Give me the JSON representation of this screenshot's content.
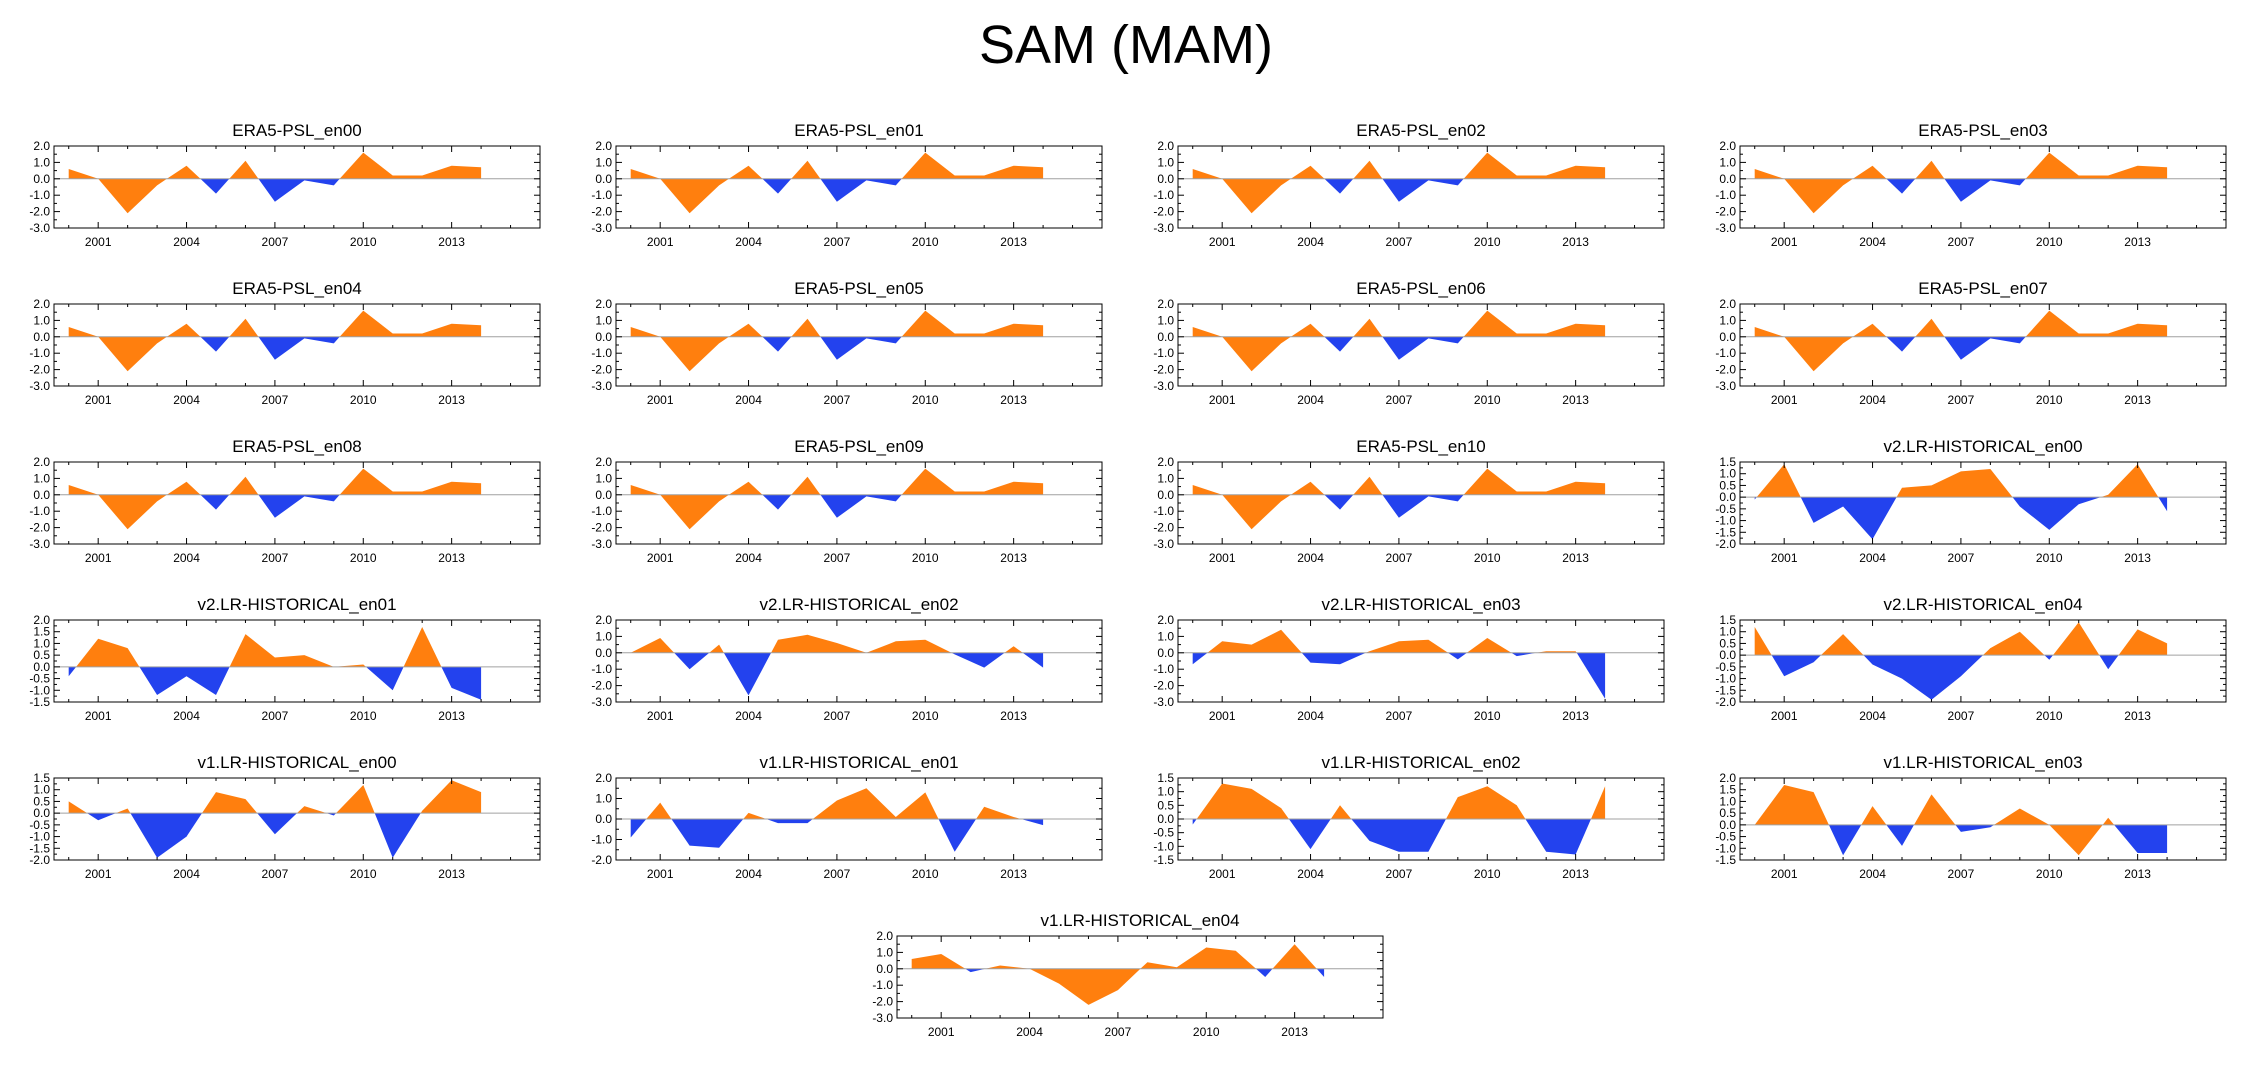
{
  "title": "SAM (MAM)",
  "colors": {
    "positive": "#ff7f0e",
    "negative": "#2342ee",
    "zero_line": "#a0a0a0"
  },
  "chart_data": [
    {
      "type": "area",
      "title": "ERA5-PSL_en00",
      "x": [
        2000,
        2001,
        2002,
        2003,
        2004,
        2005,
        2006,
        2007,
        2008,
        2009,
        2010,
        2011,
        2012,
        2013,
        2014
      ],
      "values": [
        0.6,
        0.0,
        -2.1,
        -0.4,
        0.8,
        -0.9,
        1.1,
        -1.4,
        -0.1,
        -0.4,
        1.6,
        0.2,
        0.2,
        0.8,
        0.7
      ],
      "yticks": [
        2.0,
        1.0,
        0.0,
        -1.0,
        -2.0,
        -3.0
      ],
      "ylim": [
        -3.0,
        2.0
      ],
      "xticks": [
        2001,
        2004,
        2007,
        2010,
        2013
      ],
      "xlim": [
        1999.5,
        2016
      ]
    },
    {
      "type": "area",
      "title": "ERA5-PSL_en01",
      "x": [
        2000,
        2001,
        2002,
        2003,
        2004,
        2005,
        2006,
        2007,
        2008,
        2009,
        2010,
        2011,
        2012,
        2013,
        2014
      ],
      "values": [
        0.6,
        0.0,
        -2.1,
        -0.4,
        0.8,
        -0.9,
        1.1,
        -1.4,
        -0.1,
        -0.4,
        1.6,
        0.2,
        0.2,
        0.8,
        0.7
      ],
      "yticks": [
        2.0,
        1.0,
        0.0,
        -1.0,
        -2.0,
        -3.0
      ],
      "ylim": [
        -3.0,
        2.0
      ],
      "xticks": [
        2001,
        2004,
        2007,
        2010,
        2013
      ],
      "xlim": [
        1999.5,
        2016
      ]
    },
    {
      "type": "area",
      "title": "ERA5-PSL_en02",
      "x": [
        2000,
        2001,
        2002,
        2003,
        2004,
        2005,
        2006,
        2007,
        2008,
        2009,
        2010,
        2011,
        2012,
        2013,
        2014
      ],
      "values": [
        0.6,
        0.0,
        -2.1,
        -0.4,
        0.8,
        -0.9,
        1.1,
        -1.4,
        -0.1,
        -0.4,
        1.6,
        0.2,
        0.2,
        0.8,
        0.7
      ],
      "yticks": [
        2.0,
        1.0,
        0.0,
        -1.0,
        -2.0,
        -3.0
      ],
      "ylim": [
        -3.0,
        2.0
      ],
      "xticks": [
        2001,
        2004,
        2007,
        2010,
        2013
      ],
      "xlim": [
        1999.5,
        2016
      ]
    },
    {
      "type": "area",
      "title": "ERA5-PSL_en03",
      "x": [
        2000,
        2001,
        2002,
        2003,
        2004,
        2005,
        2006,
        2007,
        2008,
        2009,
        2010,
        2011,
        2012,
        2013,
        2014
      ],
      "values": [
        0.6,
        0.0,
        -2.1,
        -0.4,
        0.8,
        -0.9,
        1.1,
        -1.4,
        -0.1,
        -0.4,
        1.6,
        0.2,
        0.2,
        0.8,
        0.7
      ],
      "yticks": [
        2.0,
        1.0,
        0.0,
        -1.0,
        -2.0,
        -3.0
      ],
      "ylim": [
        -3.0,
        2.0
      ],
      "xticks": [
        2001,
        2004,
        2007,
        2010,
        2013
      ],
      "xlim": [
        1999.5,
        2016
      ]
    },
    {
      "type": "area",
      "title": "ERA5-PSL_en04",
      "x": [
        2000,
        2001,
        2002,
        2003,
        2004,
        2005,
        2006,
        2007,
        2008,
        2009,
        2010,
        2011,
        2012,
        2013,
        2014
      ],
      "values": [
        0.6,
        0.0,
        -2.1,
        -0.4,
        0.8,
        -0.9,
        1.1,
        -1.4,
        -0.1,
        -0.4,
        1.6,
        0.2,
        0.2,
        0.8,
        0.7
      ],
      "yticks": [
        2.0,
        1.0,
        0.0,
        -1.0,
        -2.0,
        -3.0
      ],
      "ylim": [
        -3.0,
        2.0
      ],
      "xticks": [
        2001,
        2004,
        2007,
        2010,
        2013
      ],
      "xlim": [
        1999.5,
        2016
      ]
    },
    {
      "type": "area",
      "title": "ERA5-PSL_en05",
      "x": [
        2000,
        2001,
        2002,
        2003,
        2004,
        2005,
        2006,
        2007,
        2008,
        2009,
        2010,
        2011,
        2012,
        2013,
        2014
      ],
      "values": [
        0.6,
        0.0,
        -2.1,
        -0.4,
        0.8,
        -0.9,
        1.1,
        -1.4,
        -0.1,
        -0.4,
        1.6,
        0.2,
        0.2,
        0.8,
        0.7
      ],
      "yticks": [
        2.0,
        1.0,
        0.0,
        -1.0,
        -2.0,
        -3.0
      ],
      "ylim": [
        -3.0,
        2.0
      ],
      "xticks": [
        2001,
        2004,
        2007,
        2010,
        2013
      ],
      "xlim": [
        1999.5,
        2016
      ]
    },
    {
      "type": "area",
      "title": "ERA5-PSL_en06",
      "x": [
        2000,
        2001,
        2002,
        2003,
        2004,
        2005,
        2006,
        2007,
        2008,
        2009,
        2010,
        2011,
        2012,
        2013,
        2014
      ],
      "values": [
        0.6,
        0.0,
        -2.1,
        -0.4,
        0.8,
        -0.9,
        1.1,
        -1.4,
        -0.1,
        -0.4,
        1.6,
        0.2,
        0.2,
        0.8,
        0.7
      ],
      "yticks": [
        2.0,
        1.0,
        0.0,
        -1.0,
        -2.0,
        -3.0
      ],
      "ylim": [
        -3.0,
        2.0
      ],
      "xticks": [
        2001,
        2004,
        2007,
        2010,
        2013
      ],
      "xlim": [
        1999.5,
        2016
      ]
    },
    {
      "type": "area",
      "title": "ERA5-PSL_en07",
      "x": [
        2000,
        2001,
        2002,
        2003,
        2004,
        2005,
        2006,
        2007,
        2008,
        2009,
        2010,
        2011,
        2012,
        2013,
        2014
      ],
      "values": [
        0.6,
        0.0,
        -2.1,
        -0.4,
        0.8,
        -0.9,
        1.1,
        -1.4,
        -0.1,
        -0.4,
        1.6,
        0.2,
        0.2,
        0.8,
        0.7
      ],
      "yticks": [
        2.0,
        1.0,
        0.0,
        -1.0,
        -2.0,
        -3.0
      ],
      "ylim": [
        -3.0,
        2.0
      ],
      "xticks": [
        2001,
        2004,
        2007,
        2010,
        2013
      ],
      "xlim": [
        1999.5,
        2016
      ]
    },
    {
      "type": "area",
      "title": "ERA5-PSL_en08",
      "x": [
        2000,
        2001,
        2002,
        2003,
        2004,
        2005,
        2006,
        2007,
        2008,
        2009,
        2010,
        2011,
        2012,
        2013,
        2014
      ],
      "values": [
        0.6,
        0.0,
        -2.1,
        -0.4,
        0.8,
        -0.9,
        1.1,
        -1.4,
        -0.1,
        -0.4,
        1.6,
        0.2,
        0.2,
        0.8,
        0.7
      ],
      "yticks": [
        2.0,
        1.0,
        0.0,
        -1.0,
        -2.0,
        -3.0
      ],
      "ylim": [
        -3.0,
        2.0
      ],
      "xticks": [
        2001,
        2004,
        2007,
        2010,
        2013
      ],
      "xlim": [
        1999.5,
        2016
      ]
    },
    {
      "type": "area",
      "title": "ERA5-PSL_en09",
      "x": [
        2000,
        2001,
        2002,
        2003,
        2004,
        2005,
        2006,
        2007,
        2008,
        2009,
        2010,
        2011,
        2012,
        2013,
        2014
      ],
      "values": [
        0.6,
        0.0,
        -2.1,
        -0.4,
        0.8,
        -0.9,
        1.1,
        -1.4,
        -0.1,
        -0.4,
        1.6,
        0.2,
        0.2,
        0.8,
        0.7
      ],
      "yticks": [
        2.0,
        1.0,
        0.0,
        -1.0,
        -2.0,
        -3.0
      ],
      "ylim": [
        -3.0,
        2.0
      ],
      "xticks": [
        2001,
        2004,
        2007,
        2010,
        2013
      ],
      "xlim": [
        1999.5,
        2016
      ]
    },
    {
      "type": "area",
      "title": "ERA5-PSL_en10",
      "x": [
        2000,
        2001,
        2002,
        2003,
        2004,
        2005,
        2006,
        2007,
        2008,
        2009,
        2010,
        2011,
        2012,
        2013,
        2014
      ],
      "values": [
        0.6,
        0.0,
        -2.1,
        -0.4,
        0.8,
        -0.9,
        1.1,
        -1.4,
        -0.1,
        -0.4,
        1.6,
        0.2,
        0.2,
        0.8,
        0.7
      ],
      "yticks": [
        2.0,
        1.0,
        0.0,
        -1.0,
        -2.0,
        -3.0
      ],
      "ylim": [
        -3.0,
        2.0
      ],
      "xticks": [
        2001,
        2004,
        2007,
        2010,
        2013
      ],
      "xlim": [
        1999.5,
        2016
      ]
    },
    {
      "type": "area",
      "title": "v2.LR-HISTORICAL_en00",
      "x": [
        2000,
        2001,
        2002,
        2003,
        2004,
        2005,
        2006,
        2007,
        2008,
        2009,
        2010,
        2011,
        2012,
        2013,
        2014
      ],
      "values": [
        -0.1,
        1.4,
        -1.1,
        -0.4,
        -1.8,
        0.4,
        0.5,
        1.1,
        1.2,
        -0.4,
        -1.4,
        -0.3,
        0.1,
        1.4,
        -0.6
      ],
      "yticks": [
        1.5,
        1.0,
        0.5,
        0.0,
        -0.5,
        -1.0,
        -1.5,
        -2.0
      ],
      "ylim": [
        -2.0,
        1.5
      ],
      "xticks": [
        2001,
        2004,
        2007,
        2010,
        2013
      ],
      "xlim": [
        1999.5,
        2016
      ]
    },
    {
      "type": "area",
      "title": "v2.LR-HISTORICAL_en01",
      "x": [
        2000,
        2001,
        2002,
        2003,
        2004,
        2005,
        2006,
        2007,
        2008,
        2009,
        2010,
        2011,
        2012,
        2013,
        2014
      ],
      "values": [
        -0.4,
        1.2,
        0.8,
        -1.2,
        -0.4,
        -1.2,
        1.4,
        0.4,
        0.5,
        0.0,
        0.1,
        -1.0,
        1.7,
        -0.9,
        -1.4
      ],
      "yticks": [
        2.0,
        1.5,
        1.0,
        0.5,
        0.0,
        -0.5,
        -1.0,
        -1.5
      ],
      "ylim": [
        -1.5,
        2.0
      ],
      "xticks": [
        2001,
        2004,
        2007,
        2010,
        2013
      ],
      "xlim": [
        1999.5,
        2016
      ]
    },
    {
      "type": "area",
      "title": "v2.LR-HISTORICAL_en02",
      "x": [
        2000,
        2001,
        2002,
        2003,
        2004,
        2005,
        2006,
        2007,
        2008,
        2009,
        2010,
        2011,
        2012,
        2013,
        2014
      ],
      "values": [
        0.0,
        0.9,
        -1.0,
        0.5,
        -2.6,
        0.8,
        1.1,
        0.6,
        0.0,
        0.7,
        0.8,
        -0.1,
        -0.9,
        0.4,
        -0.9
      ],
      "yticks": [
        2.0,
        1.0,
        0.0,
        -1.0,
        -2.0,
        -3.0
      ],
      "ylim": [
        -3.0,
        2.0
      ],
      "xticks": [
        2001,
        2004,
        2007,
        2010,
        2013
      ],
      "xlim": [
        1999.5,
        2016
      ]
    },
    {
      "type": "area",
      "title": "v2.LR-HISTORICAL_en03",
      "x": [
        2000,
        2001,
        2002,
        2003,
        2004,
        2005,
        2006,
        2007,
        2008,
        2009,
        2010,
        2011,
        2012,
        2013,
        2014
      ],
      "values": [
        -0.7,
        0.7,
        0.5,
        1.4,
        -0.6,
        -0.7,
        0.1,
        0.7,
        0.8,
        -0.4,
        0.9,
        -0.2,
        0.1,
        0.1,
        -2.8
      ],
      "yticks": [
        2.0,
        1.0,
        0.0,
        -1.0,
        -2.0,
        -3.0
      ],
      "ylim": [
        -3.0,
        2.0
      ],
      "xticks": [
        2001,
        2004,
        2007,
        2010,
        2013
      ],
      "xlim": [
        1999.5,
        2016
      ]
    },
    {
      "type": "area",
      "title": "v2.LR-HISTORICAL_en04",
      "x": [
        2000,
        2001,
        2002,
        2003,
        2004,
        2005,
        2006,
        2007,
        2008,
        2009,
        2010,
        2011,
        2012,
        2013,
        2014
      ],
      "values": [
        1.2,
        -0.9,
        -0.3,
        0.9,
        -0.4,
        -1.0,
        -1.9,
        -0.9,
        0.3,
        1.0,
        -0.2,
        1.4,
        -0.6,
        1.1,
        0.5
      ],
      "yticks": [
        1.5,
        1.0,
        0.5,
        0.0,
        -0.5,
        -1.0,
        -1.5,
        -2.0
      ],
      "ylim": [
        -2.0,
        1.5
      ],
      "xticks": [
        2001,
        2004,
        2007,
        2010,
        2013
      ],
      "xlim": [
        1999.5,
        2016
      ]
    },
    {
      "type": "area",
      "title": "v1.LR-HISTORICAL_en00",
      "x": [
        2000,
        2001,
        2002,
        2003,
        2004,
        2005,
        2006,
        2007,
        2008,
        2009,
        2010,
        2011,
        2012,
        2013,
        2014
      ],
      "values": [
        0.5,
        -0.3,
        0.2,
        -1.9,
        -1.0,
        0.9,
        0.6,
        -0.9,
        0.3,
        -0.1,
        1.2,
        -1.9,
        0.1,
        1.4,
        0.9
      ],
      "yticks": [
        1.5,
        1.0,
        0.5,
        0.0,
        -0.5,
        -1.0,
        -1.5,
        -2.0
      ],
      "ylim": [
        -2.0,
        1.5
      ],
      "xticks": [
        2001,
        2004,
        2007,
        2010,
        2013
      ],
      "xlim": [
        1999.5,
        2016
      ]
    },
    {
      "type": "area",
      "title": "v1.LR-HISTORICAL_en01",
      "x": [
        2000,
        2001,
        2002,
        2003,
        2004,
        2005,
        2006,
        2007,
        2008,
        2009,
        2010,
        2011,
        2012,
        2013,
        2014
      ],
      "values": [
        -0.9,
        0.8,
        -1.3,
        -1.4,
        0.3,
        -0.2,
        -0.2,
        0.9,
        1.5,
        0.1,
        1.3,
        -1.6,
        0.6,
        0.1,
        -0.3
      ],
      "yticks": [
        2.0,
        1.0,
        0.0,
        -1.0,
        -2.0
      ],
      "ylim": [
        -2.0,
        2.0
      ],
      "xticks": [
        2001,
        2004,
        2007,
        2010,
        2013
      ],
      "xlim": [
        1999.5,
        2016
      ]
    },
    {
      "type": "area",
      "title": "v1.LR-HISTORICAL_en02",
      "x": [
        2000,
        2001,
        2002,
        2003,
        2004,
        2005,
        2006,
        2007,
        2008,
        2009,
        2010,
        2011,
        2012,
        2013,
        2014
      ],
      "values": [
        -0.2,
        1.3,
        1.1,
        0.4,
        -1.1,
        0.5,
        -0.8,
        -1.2,
        -1.2,
        0.8,
        1.2,
        0.5,
        -1.2,
        -1.3,
        1.2
      ],
      "yticks": [
        1.5,
        1.0,
        0.5,
        0.0,
        -0.5,
        -1.0,
        -1.5
      ],
      "ylim": [
        -1.5,
        1.5
      ],
      "xticks": [
        2001,
        2004,
        2007,
        2010,
        2013
      ],
      "xlim": [
        1999.5,
        2016
      ]
    },
    {
      "type": "area",
      "title": "v1.LR-HISTORICAL_en03",
      "x": [
        2000,
        2001,
        2002,
        2003,
        2004,
        2005,
        2006,
        2007,
        2008,
        2009,
        2010,
        2011,
        2012,
        2013,
        2014
      ],
      "values": [
        0.0,
        1.7,
        1.4,
        -1.3,
        0.8,
        -0.9,
        1.3,
        -0.3,
        -0.1,
        0.7,
        0.0,
        -1.3,
        0.3,
        -1.2,
        -1.2
      ],
      "yticks": [
        2.0,
        1.5,
        1.0,
        0.5,
        0.0,
        -0.5,
        -1.0,
        -1.5
      ],
      "ylim": [
        -1.5,
        2.0
      ],
      "xticks": [
        2001,
        2004,
        2007,
        2010,
        2013
      ],
      "xlim": [
        1999.5,
        2016
      ]
    },
    {
      "type": "area",
      "title": "v1.LR-HISTORICAL_en04",
      "x": [
        2000,
        2001,
        2002,
        2003,
        2004,
        2005,
        2006,
        2007,
        2008,
        2009,
        2010,
        2011,
        2012,
        2013,
        2014
      ],
      "values": [
        0.6,
        0.9,
        -0.2,
        0.2,
        0.0,
        -0.9,
        -2.2,
        -1.3,
        0.4,
        0.1,
        1.3,
        1.1,
        -0.5,
        1.5,
        -0.5
      ],
      "yticks": [
        2.0,
        1.0,
        0.0,
        -1.0,
        -2.0,
        -3.0
      ],
      "ylim": [
        -3.0,
        2.0
      ],
      "xticks": [
        2001,
        2004,
        2007,
        2010,
        2013
      ],
      "xlim": [
        1999.5,
        2016
      ]
    }
  ]
}
